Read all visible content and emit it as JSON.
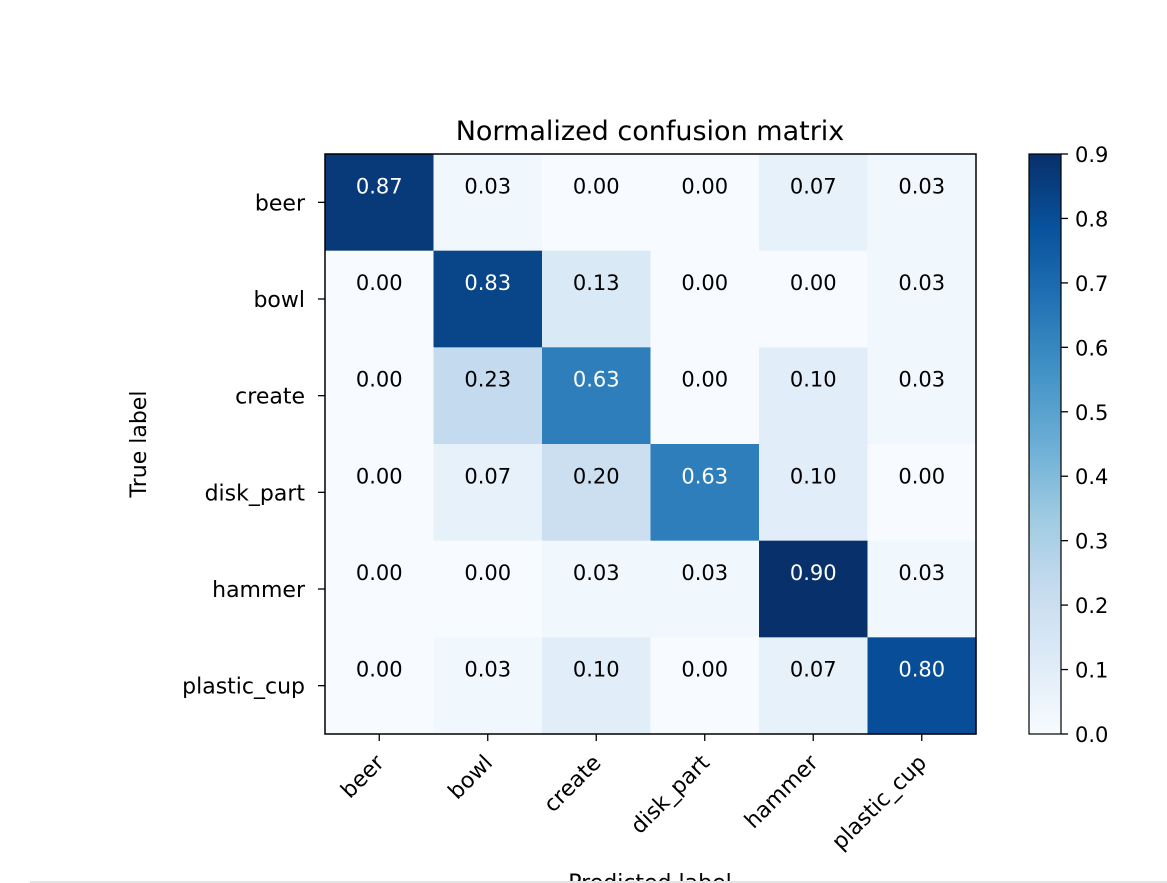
{
  "chart_data": {
    "type": "heatmap",
    "title": "Normalized confusion matrix",
    "xlabel": "Predicted label",
    "ylabel": "True label",
    "x_categories": [
      "beer",
      "bowl",
      "create",
      "disk_part",
      "hammer",
      "plastic_cup"
    ],
    "y_categories": [
      "beer",
      "bowl",
      "create",
      "disk_part",
      "hammer",
      "plastic_cup"
    ],
    "values": [
      [
        0.87,
        0.03,
        0.0,
        0.0,
        0.07,
        0.03
      ],
      [
        0.0,
        0.83,
        0.13,
        0.0,
        0.0,
        0.03
      ],
      [
        0.0,
        0.23,
        0.63,
        0.0,
        0.1,
        0.03
      ],
      [
        0.0,
        0.07,
        0.2,
        0.63,
        0.1,
        0.0
      ],
      [
        0.0,
        0.0,
        0.03,
        0.03,
        0.9,
        0.03
      ],
      [
        0.0,
        0.03,
        0.1,
        0.0,
        0.07,
        0.8
      ]
    ],
    "colormap": "Blues",
    "colorbar": {
      "vmin": 0.0,
      "vmax": 0.9,
      "ticks": [
        "0.0",
        "0.1",
        "0.2",
        "0.3",
        "0.4",
        "0.5",
        "0.6",
        "0.7",
        "0.8",
        "0.9"
      ]
    },
    "text_color_light": "#ffffff",
    "text_color_dark": "#000000",
    "value_format": "2 decimals",
    "grid": false
  }
}
